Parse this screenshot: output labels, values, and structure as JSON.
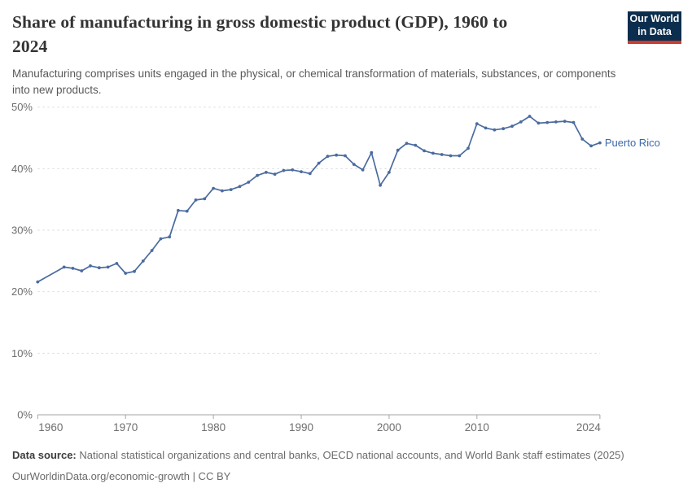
{
  "header": {
    "title_lines": [
      "Share of manufacturing in gross domestic product (GDP), 1960 to",
      "2024"
    ],
    "subtitle": "Manufacturing comprises units engaged in the physical, or chemical transformation of materials, substances, or components into new products."
  },
  "logo": {
    "line1": "Our World",
    "line2": "in Data"
  },
  "colors": {
    "line": "#4A6B9F",
    "entity_label": "#3D68A8",
    "gridline": "#dddddd",
    "axis": "#a5a5a5",
    "tick_text": "#6e6e6e",
    "logo_bg": "#0C2E4E",
    "logo_accent": "#C83C31"
  },
  "chart_data": {
    "type": "line",
    "title": "Share of manufacturing in gross domestic product (GDP), 1960 to 2024",
    "xlabel": "",
    "ylabel": "",
    "xlim": [
      1960,
      2024
    ],
    "ylim": [
      0,
      50
    ],
    "grid": "horizontal-dashed",
    "legend_position": "end-of-line-label",
    "x_ticks": [
      1960,
      1970,
      1980,
      1990,
      2000,
      2010,
      2024
    ],
    "x_tick_labels": [
      "1960",
      "1970",
      "1980",
      "1990",
      "2000",
      "2010",
      "2024"
    ],
    "y_ticks": [
      0,
      10,
      20,
      30,
      40,
      50
    ],
    "y_tick_labels": [
      "0%",
      "10%",
      "20%",
      "30%",
      "40%",
      "50%"
    ],
    "series": [
      {
        "name": "Puerto Rico",
        "unit": "%",
        "points": [
          [
            1960,
            21.6
          ],
          [
            1963,
            24.0
          ],
          [
            1964,
            23.8
          ],
          [
            1965,
            23.4
          ],
          [
            1966,
            24.2
          ],
          [
            1967,
            23.9
          ],
          [
            1968,
            24.0
          ],
          [
            1969,
            24.6
          ],
          [
            1970,
            23.0
          ],
          [
            1971,
            23.3
          ],
          [
            1972,
            25.0
          ],
          [
            1973,
            26.7
          ],
          [
            1974,
            28.6
          ],
          [
            1975,
            28.9
          ],
          [
            1976,
            33.2
          ],
          [
            1977,
            33.1
          ],
          [
            1978,
            34.9
          ],
          [
            1979,
            35.1
          ],
          [
            1980,
            36.8
          ],
          [
            1981,
            36.4
          ],
          [
            1982,
            36.6
          ],
          [
            1983,
            37.1
          ],
          [
            1984,
            37.8
          ],
          [
            1985,
            38.9
          ],
          [
            1986,
            39.4
          ],
          [
            1987,
            39.1
          ],
          [
            1988,
            39.7
          ],
          [
            1989,
            39.8
          ],
          [
            1990,
            39.5
          ],
          [
            1991,
            39.2
          ],
          [
            1992,
            40.9
          ],
          [
            1993,
            42.0
          ],
          [
            1994,
            42.2
          ],
          [
            1995,
            42.1
          ],
          [
            1996,
            40.7
          ],
          [
            1997,
            39.8
          ],
          [
            1998,
            42.6
          ],
          [
            1999,
            37.3
          ],
          [
            2000,
            39.4
          ],
          [
            2001,
            43.0
          ],
          [
            2002,
            44.1
          ],
          [
            2003,
            43.8
          ],
          [
            2004,
            42.9
          ],
          [
            2005,
            42.5
          ],
          [
            2006,
            42.3
          ],
          [
            2007,
            42.1
          ],
          [
            2008,
            42.1
          ],
          [
            2009,
            43.3
          ],
          [
            2010,
            47.3
          ],
          [
            2011,
            46.6
          ],
          [
            2012,
            46.3
          ],
          [
            2013,
            46.5
          ],
          [
            2014,
            46.9
          ],
          [
            2015,
            47.6
          ],
          [
            2016,
            48.5
          ],
          [
            2017,
            47.4
          ],
          [
            2018,
            47.5
          ],
          [
            2019,
            47.6
          ],
          [
            2020,
            47.7
          ],
          [
            2021,
            47.5
          ],
          [
            2022,
            44.8
          ],
          [
            2023,
            43.7
          ],
          [
            2024,
            44.2
          ]
        ]
      }
    ]
  },
  "footer": {
    "source_label": "Data source:",
    "source_text": " National statistical organizations and central banks, OECD national accounts, and World Bank staff estimates (2025)",
    "link_line": "OurWorldinData.org/economic-growth | CC BY"
  }
}
